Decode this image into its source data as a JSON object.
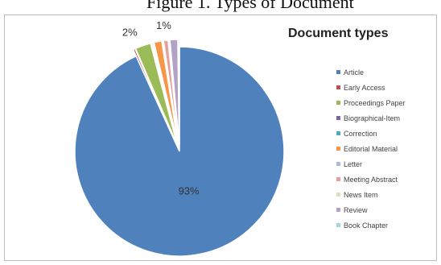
{
  "caption": "Figure 1. Types of Document",
  "chart_data": {
    "type": "pie",
    "title": "Document types",
    "legend_position": "right",
    "start_angle_deg": 0,
    "direction": "clockwise",
    "slices": [
      {
        "name": "Article",
        "value": 93.2,
        "color": "#4f81bd",
        "label": "93%"
      },
      {
        "name": "Early Access",
        "value": 0.3,
        "color": "#c0504d",
        "label": ""
      },
      {
        "name": "Proceedings Paper",
        "value": 2.4,
        "color": "#9bbb59",
        "label": "2%"
      },
      {
        "name": "Biographical-Item",
        "value": 0.2,
        "color": "#8064a2",
        "label": ""
      },
      {
        "name": "Correction",
        "value": 0.2,
        "color": "#4bacc6",
        "label": ""
      },
      {
        "name": "Editorial Material",
        "value": 1.2,
        "color": "#f79646",
        "label": ""
      },
      {
        "name": "Letter",
        "value": 0.2,
        "color": "#aabbe0",
        "label": ""
      },
      {
        "name": "Meeting Abstract",
        "value": 0.7,
        "color": "#e6a09a",
        "label": ""
      },
      {
        "name": "News Item",
        "value": 0.2,
        "color": "#d7e4bd",
        "label": ""
      },
      {
        "name": "Review",
        "value": 1.2,
        "color": "#b3a2c7",
        "label": "1%"
      },
      {
        "name": "Book Chapter",
        "value": 0.2,
        "color": "#a5d5e2",
        "label": ""
      }
    ]
  }
}
